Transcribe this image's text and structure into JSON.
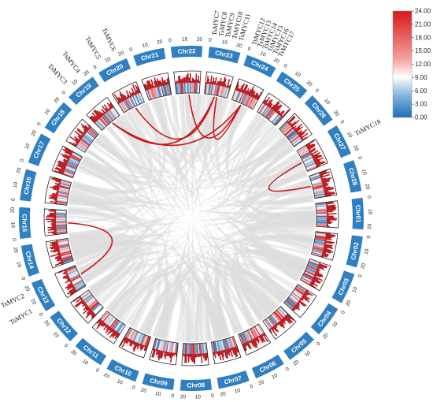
{
  "chromosomes": [
    {
      "name": "Chr01",
      "color": "#2f7fc1"
    },
    {
      "name": "Chr02",
      "color": "#2f7fc1"
    },
    {
      "name": "Chr03",
      "color": "#2f7fc1"
    },
    {
      "name": "Chr04",
      "color": "#2f7fc1"
    },
    {
      "name": "Chr05",
      "color": "#2f7fc1"
    },
    {
      "name": "Chr06",
      "color": "#2f7fc1"
    },
    {
      "name": "Chr07",
      "color": "#2f7fc1"
    },
    {
      "name": "Chr08",
      "color": "#2f7fc1"
    },
    {
      "name": "Chr09",
      "color": "#2f7fc1"
    },
    {
      "name": "Chr10",
      "color": "#2f7fc1"
    },
    {
      "name": "Chr11",
      "color": "#2f7fc1"
    },
    {
      "name": "Chr12",
      "color": "#2f7fc1"
    },
    {
      "name": "Chr13",
      "color": "#2f7fc1"
    },
    {
      "name": "Chr14",
      "color": "#2f7fc1"
    },
    {
      "name": "Chr15",
      "color": "#2f7fc1"
    },
    {
      "name": "Chr16",
      "color": "#2f7fc1"
    },
    {
      "name": "Chr17",
      "color": "#2f7fc1"
    },
    {
      "name": "Chr18",
      "color": "#2f7fc1"
    },
    {
      "name": "Chr19",
      "color": "#2f7fc1"
    },
    {
      "name": "Chr20",
      "color": "#2f7fc1"
    },
    {
      "name": "Chr21",
      "color": "#2f7fc1"
    },
    {
      "name": "Chr22",
      "color": "#2f7fc1"
    },
    {
      "name": "Chr23",
      "color": "#2f7fc1"
    },
    {
      "name": "Chr24",
      "color": "#2f7fc1"
    },
    {
      "name": "Chr25",
      "color": "#2f7fc1"
    },
    {
      "name": "Chr26",
      "color": "#2f7fc1"
    },
    {
      "name": "Chr27",
      "color": "#2f7fc1"
    },
    {
      "name": "Chr28",
      "color": "#2f7fc1"
    }
  ],
  "gene_labels": [
    {
      "name": "TsMYC1",
      "chr": "Chr13"
    },
    {
      "name": "TsMYC2",
      "chr": "Chr13"
    },
    {
      "name": "TsMYC3",
      "chr": "Chr19"
    },
    {
      "name": "TsMYC4",
      "chr": "Chr19"
    },
    {
      "name": "TsMYC5",
      "chr": "Chr20"
    },
    {
      "name": "TsMYC6",
      "chr": "Chr20"
    },
    {
      "name": "TsMYC7",
      "chr": "Chr23"
    },
    {
      "name": "TsMYC8",
      "chr": "Chr23"
    },
    {
      "name": "TsMYC9",
      "chr": "Chr23"
    },
    {
      "name": "TsMYC10",
      "chr": "Chr23"
    },
    {
      "name": "TsMYC11",
      "chr": "Chr23"
    },
    {
      "name": "TsMYC12",
      "chr": "Chr24"
    },
    {
      "name": "TsMYC13",
      "chr": "Chr24"
    },
    {
      "name": "TsMYC14",
      "chr": "Chr24"
    },
    {
      "name": "TsMYC15",
      "chr": "Chr24"
    },
    {
      "name": "TsMYC16",
      "chr": "Chr24"
    },
    {
      "name": "TsMYC17",
      "chr": "Chr24"
    },
    {
      "name": "TsMYC18",
      "chr": "Chr27"
    }
  ],
  "duplication_links": [
    {
      "from": "Chr13",
      "to": "Chr15"
    },
    {
      "from": "Chr19",
      "to": "Chr23"
    },
    {
      "from": "Chr19",
      "to": "Chr24"
    },
    {
      "from": "Chr20",
      "to": "Chr23"
    },
    {
      "from": "Chr22",
      "to": "Chr24"
    },
    {
      "from": "Chr23",
      "to": "Chr24"
    },
    {
      "from": "Chr27",
      "to": "Chr28"
    }
  ],
  "link_color": "#cc1111",
  "background_link_color": "#dcdcdc",
  "scale_ticks": [
    "0",
    "10",
    "20"
  ],
  "legend": {
    "ticks": [
      "24.00",
      "21.00",
      "18.00",
      "15.00",
      "12.00",
      "9.00",
      "6.00",
      "3.00",
      "0.00"
    ],
    "color_high": "#e31a1c",
    "color_mid": "#ffffff",
    "color_low": "#2171b5"
  }
}
